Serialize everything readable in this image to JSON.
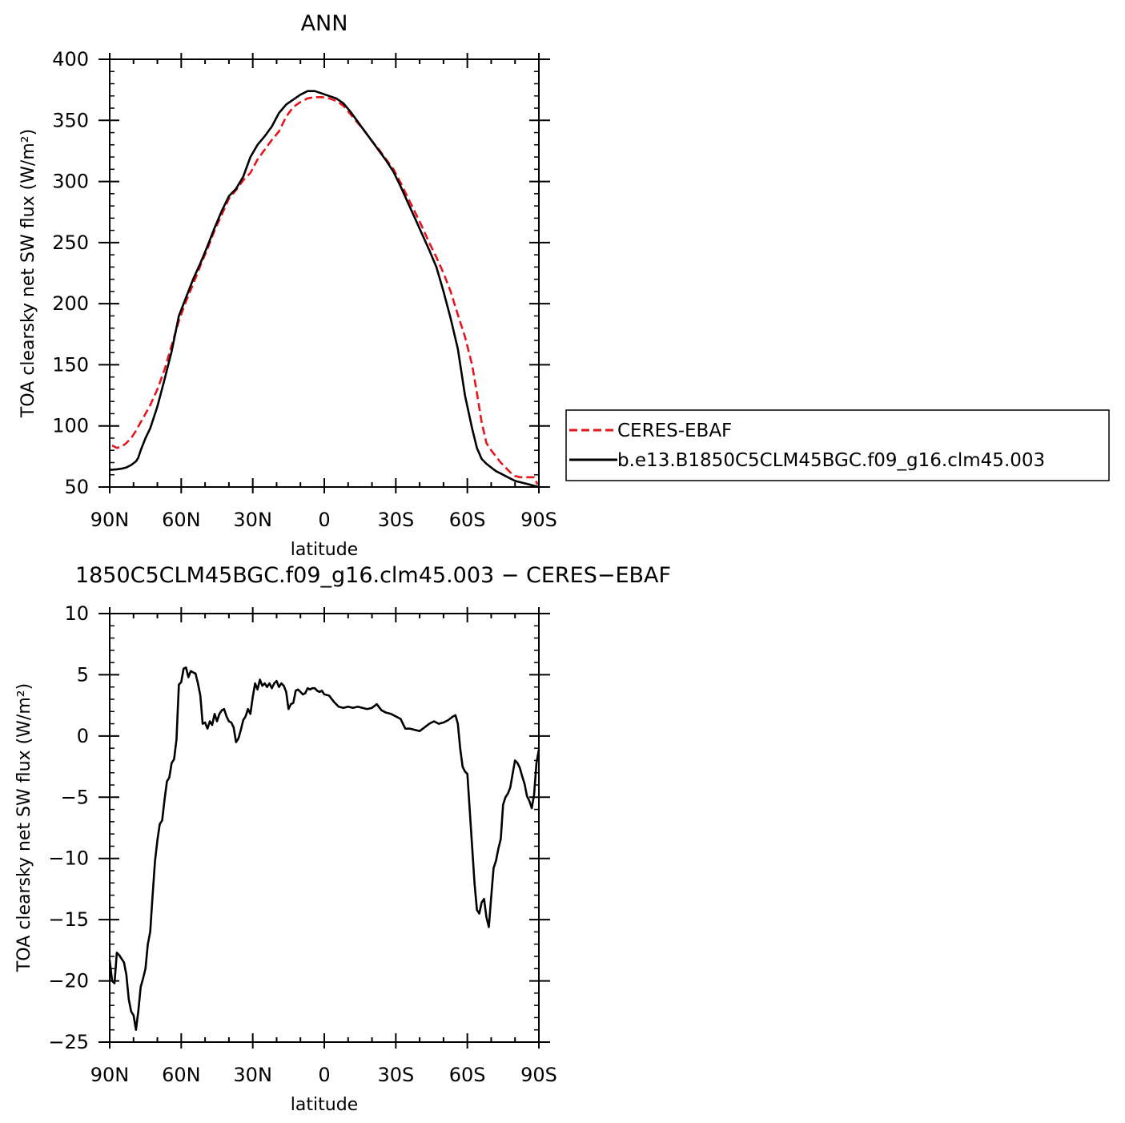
{
  "chart_data": [
    {
      "type": "line",
      "title": "ANN",
      "xlabel": "latitude",
      "ylabel": "TOA clearsky net SW flux (W/m²)",
      "xlim": [
        90,
        -90
      ],
      "ylim": [
        50,
        400
      ],
      "x_tick_values": [
        90,
        60,
        30,
        0,
        -30,
        -60,
        -90
      ],
      "x_tick_labels": [
        "90N",
        "60N",
        "30N",
        "0",
        "30S",
        "60S",
        "90S"
      ],
      "y_tick_values": [
        50,
        100,
        150,
        200,
        250,
        300,
        350,
        400
      ],
      "y_tick_labels": [
        "50",
        "100",
        "150",
        "200",
        "250",
        "300",
        "350",
        "400"
      ],
      "grid": false,
      "legend_position": "right",
      "series": [
        {
          "name": "CERES-EBAF",
          "color": "#e8141c",
          "dash": "dashed",
          "x": [
            89,
            87,
            85,
            83,
            81,
            79,
            77,
            75,
            73,
            70,
            67,
            64,
            61,
            58,
            55,
            52,
            49,
            46,
            43,
            40,
            37,
            34,
            31,
            28,
            25,
            22,
            19,
            16,
            13,
            10,
            7,
            4,
            1,
            -2,
            -5,
            -8,
            -11,
            -14,
            -17,
            -20,
            -23,
            -26,
            -29,
            -32,
            -35,
            -38,
            -41,
            -44,
            -47,
            -50,
            -53,
            -56,
            -59,
            -62,
            -64,
            -66,
            -68,
            -70,
            -72,
            -74,
            -76,
            -78,
            -80,
            -82,
            -84,
            -86,
            -88,
            -89.5
          ],
          "y": [
            84,
            82,
            83,
            86,
            90,
            96,
            103,
            110,
            117,
            130,
            146,
            166,
            186,
            202,
            216,
            231,
            245,
            260,
            273,
            286,
            293,
            301,
            307,
            318,
            326,
            334,
            341,
            353,
            361,
            365,
            368,
            369,
            369,
            368,
            366,
            362,
            355,
            348,
            341,
            333,
            326,
            318,
            310,
            299,
            287,
            275,
            263,
            250,
            238,
            225,
            210,
            191,
            173,
            150,
            127,
            103,
            86,
            80,
            75,
            70,
            66,
            62,
            59,
            58,
            58,
            58,
            58,
            52
          ]
        },
        {
          "name": "b.e13.B1850C5CLM45BGC.f09_g16.clm45.003",
          "color": "#000000",
          "dash": "solid",
          "x": [
            90,
            87,
            85,
            83,
            81,
            79,
            78,
            77,
            75,
            73,
            70,
            67,
            64,
            61,
            58,
            55,
            52,
            49,
            46,
            43,
            40,
            37,
            34,
            31,
            28,
            25,
            22,
            19,
            16,
            13,
            10,
            7,
            4,
            1,
            -2,
            -5,
            -8,
            -11,
            -14,
            -17,
            -20,
            -23,
            -26,
            -29,
            -32,
            -35,
            -38,
            -41,
            -44,
            -47,
            -50,
            -53,
            -56,
            -59,
            -62,
            -64,
            -66,
            -68,
            -70,
            -72,
            -74,
            -76,
            -78,
            -80,
            -82,
            -84,
            -86,
            -88,
            -90
          ],
          "y": [
            64,
            64.5,
            65,
            66,
            68,
            71,
            74,
            80,
            90,
            98,
            116,
            138,
            161,
            190,
            205,
            220,
            233,
            247,
            262,
            276,
            288,
            294,
            304,
            320,
            330,
            337,
            345,
            356,
            363,
            367,
            371,
            374,
            374,
            372,
            370,
            368,
            364,
            357,
            349,
            341,
            333,
            325,
            317,
            308,
            296,
            283,
            270,
            257,
            244,
            230,
            210,
            188,
            163,
            125,
            98,
            82,
            73,
            69,
            66,
            63,
            61,
            59,
            57,
            55,
            54,
            53,
            52,
            51,
            50
          ]
        }
      ]
    },
    {
      "type": "line",
      "title": "1850C5CLM45BGC.f09_g16.clm45.003 − CERES−EBAF",
      "xlabel": "latitude",
      "ylabel": "TOA clearsky net SW flux (W/m²)",
      "xlim": [
        90,
        -90
      ],
      "ylim": [
        -25,
        10
      ],
      "x_tick_values": [
        90,
        60,
        30,
        0,
        -30,
        -60,
        -90
      ],
      "x_tick_labels": [
        "90N",
        "60N",
        "30N",
        "0",
        "30S",
        "60S",
        "90S"
      ],
      "y_tick_values": [
        -25,
        -20,
        -15,
        -10,
        -5,
        0,
        5,
        10
      ],
      "y_tick_labels": [
        "−25",
        "−20",
        "−15",
        "−10",
        "−5",
        "0",
        "5",
        "10"
      ],
      "grid": false,
      "series": [
        {
          "color": "#000000",
          "dash": "solid",
          "x": [
            90,
            89,
            88,
            87,
            86,
            85,
            84,
            83,
            82,
            81,
            80,
            79,
            78,
            77,
            76,
            75,
            74,
            73,
            72,
            71,
            70,
            69,
            68,
            67,
            66,
            65,
            64,
            63,
            62,
            61,
            60,
            59,
            58,
            57,
            56,
            55,
            54,
            53,
            52,
            51,
            50,
            49,
            48,
            47,
            46,
            45,
            44,
            43,
            42,
            41,
            40,
            39,
            38,
            37,
            36,
            35,
            34,
            33,
            32,
            31,
            30,
            29,
            28,
            27,
            26,
            25,
            24,
            23,
            22,
            21,
            20,
            19,
            18,
            17,
            16,
            15,
            14,
            13,
            12,
            11,
            10,
            9,
            8,
            7,
            6,
            5,
            4,
            3,
            2,
            1,
            0,
            -2,
            -4,
            -6,
            -8,
            -10,
            -12,
            -14,
            -16,
            -18,
            -20,
            -22,
            -24,
            -26,
            -28,
            -30,
            -32,
            -34,
            -36,
            -38,
            -40,
            -42,
            -44,
            -46,
            -48,
            -50,
            -52,
            -54,
            -55,
            -56,
            -57,
            -58,
            -59,
            -60,
            -61,
            -62,
            -63,
            -64,
            -65,
            -66,
            -67,
            -68,
            -69,
            -70,
            -71,
            -72,
            -73,
            -74,
            -75,
            -76,
            -77,
            -78,
            -79,
            -80,
            -81,
            -82,
            -83,
            -84,
            -85,
            -86,
            -87,
            -88,
            -89,
            -90
          ],
          "y": [
            -18.3,
            -20.0,
            -20.2,
            -17.7,
            -17.9,
            -18.2,
            -18.5,
            -19.5,
            -21.5,
            -22.5,
            -22.8,
            -24.0,
            -22.5,
            -20.5,
            -19.8,
            -19.0,
            -17.0,
            -16.0,
            -13.0,
            -10.2,
            -8.5,
            -7.2,
            -6.9,
            -5.2,
            -3.7,
            -3.4,
            -2.2,
            -1.9,
            -0.3,
            4.2,
            4.4,
            5.5,
            5.6,
            4.8,
            5.3,
            5.2,
            5.1,
            4.3,
            3.3,
            1.0,
            1.1,
            0.6,
            1.2,
            0.9,
            1.8,
            1.2,
            1.8,
            2.1,
            2.2,
            1.6,
            1.2,
            1.1,
            0.7,
            -0.5,
            -0.2,
            0.5,
            1.3,
            1.6,
            2.2,
            1.8,
            3.2,
            4.3,
            3.8,
            4.6,
            4.1,
            4.3,
            4.0,
            4.3,
            3.9,
            4.3,
            4.5,
            4.0,
            4.3,
            4.1,
            3.6,
            2.2,
            2.6,
            2.7,
            3.7,
            3.8,
            3.6,
            3.4,
            3.5,
            3.9,
            3.8,
            3.9,
            3.9,
            3.7,
            3.6,
            3.7,
            3.4,
            3.3,
            2.8,
            2.4,
            2.3,
            2.4,
            2.3,
            2.4,
            2.3,
            2.2,
            2.3,
            2.6,
            2.1,
            1.9,
            1.8,
            1.6,
            1.4,
            0.6,
            0.6,
            0.5,
            0.4,
            0.7,
            1.0,
            1.2,
            1.0,
            1.1,
            1.3,
            1.6,
            1.7,
            1.0,
            -1.0,
            -2.5,
            -2.9,
            -3.1,
            -6.0,
            -9.0,
            -12.0,
            -14.2,
            -14.5,
            -13.6,
            -13.3,
            -14.8,
            -15.6,
            -13.2,
            -10.8,
            -10.2,
            -9.2,
            -8.4,
            -5.6,
            -5.0,
            -4.7,
            -4.2,
            -3.1,
            -2.0,
            -2.2,
            -2.6,
            -3.3,
            -3.9,
            -4.9,
            -5.3,
            -5.9,
            -4.8,
            -2.2,
            -1.1
          ]
        }
      ]
    }
  ]
}
